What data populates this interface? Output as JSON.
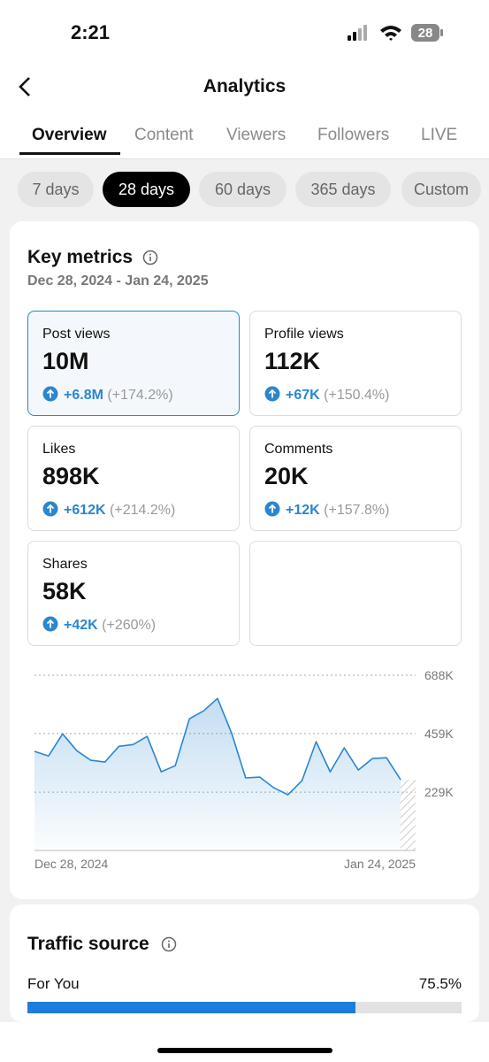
{
  "status": {
    "time": "2:21",
    "battery": "28"
  },
  "header": {
    "title": "Analytics"
  },
  "tabs": [
    "Overview",
    "Content",
    "Viewers",
    "Followers",
    "LIVE"
  ],
  "active_tab_index": 0,
  "periods": [
    "7 days",
    "28 days",
    "60 days",
    "365 days",
    "Custom"
  ],
  "active_period_index": 1,
  "key_metrics": {
    "title": "Key metrics",
    "date_range": "Dec 28, 2024 - Jan 24, 2025",
    "metrics": [
      {
        "label": "Post views",
        "value": "10M",
        "change": "+6.8M",
        "change_pct": "(+174.2%)"
      },
      {
        "label": "Profile views",
        "value": "112K",
        "change": "+67K",
        "change_pct": "(+150.4%)"
      },
      {
        "label": "Likes",
        "value": "898K",
        "change": "+612K",
        "change_pct": "(+214.2%)"
      },
      {
        "label": "Comments",
        "value": "20K",
        "change": "+12K",
        "change_pct": "(+157.8%)"
      },
      {
        "label": "Shares",
        "value": "58K",
        "change": "+42K",
        "change_pct": "(+260%)"
      }
    ]
  },
  "chart_data": {
    "type": "area",
    "categories": [
      "Dec 28, 2024",
      null,
      null,
      null,
      null,
      null,
      null,
      null,
      null,
      null,
      null,
      null,
      null,
      null,
      null,
      null,
      null,
      null,
      null,
      null,
      null,
      null,
      null,
      null,
      null,
      null,
      "Jan 24, 2025"
    ],
    "values": [
      389000,
      371000,
      458000,
      392000,
      354000,
      347000,
      409000,
      416000,
      448000,
      309000,
      333000,
      517000,
      548000,
      597000,
      461000,
      285000,
      288000,
      246000,
      219000,
      274000,
      427000,
      309000,
      403000,
      316000,
      361000,
      364000,
      278000
    ],
    "color": "#2a86cf",
    "ylim": [
      0,
      688000
    ],
    "yticks": [
      {
        "value": 229000,
        "label": "229K"
      },
      {
        "value": 459000,
        "label": "459K"
      },
      {
        "value": 688000,
        "label": "688K"
      }
    ],
    "grid": true
  },
  "traffic_source": {
    "title": "Traffic source",
    "sources": [
      {
        "label": "For You",
        "value": 75.5,
        "value_label": "75.5%"
      }
    ]
  }
}
